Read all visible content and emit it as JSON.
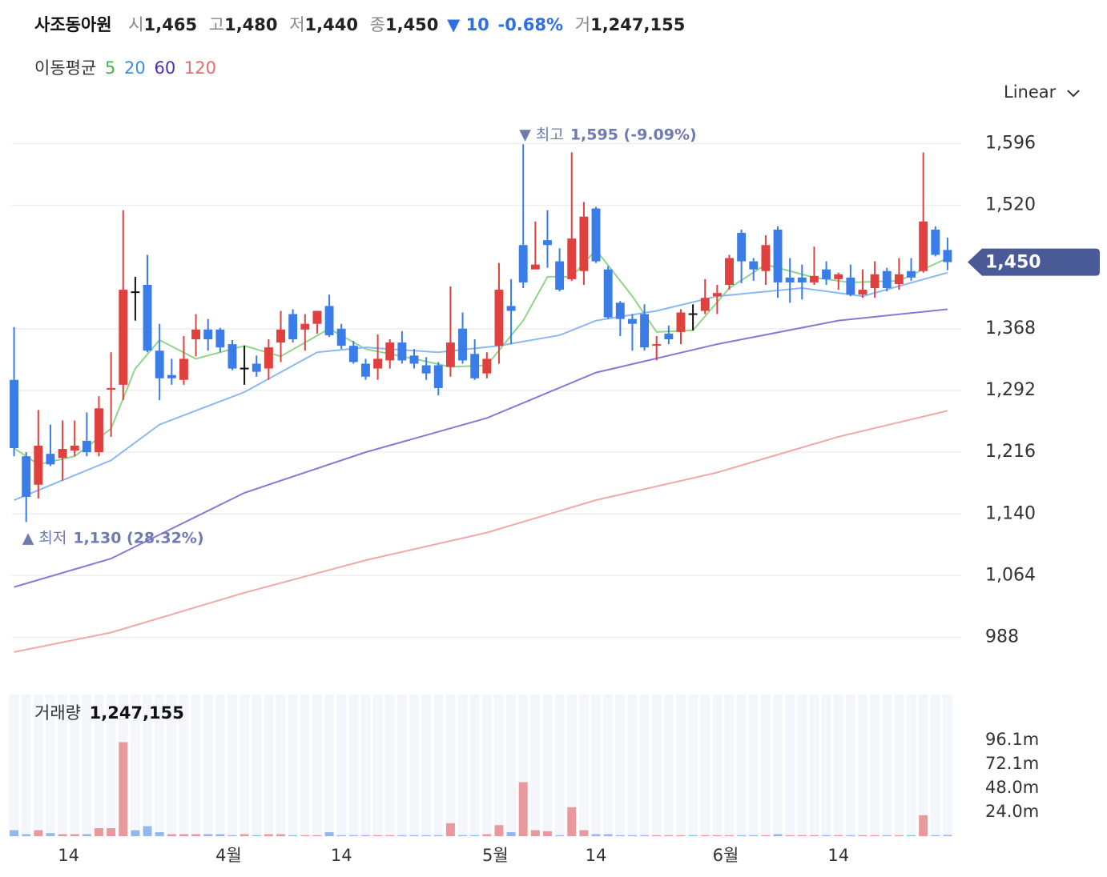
{
  "chart_data": {
    "type": "candlestick",
    "title": "사조동아원",
    "quote": [
      {
        "label": "시",
        "value": "1,465"
      },
      {
        "label": "고",
        "value": "1,480"
      },
      {
        "label": "저",
        "value": "1,440"
      },
      {
        "label": "종",
        "value": "1,450"
      }
    ],
    "change": "▼ 10",
    "change_pct": "-0.68%",
    "volume_label": "거",
    "volume_value": "1,247,155",
    "ma_title": "이동평균",
    "scale_mode": "Linear",
    "open": [
      1305,
      1211,
      1176,
      1214,
      1209,
      1218,
      1230,
      1216,
      1293,
      1299,
      1413,
      1422,
      1341,
      1311,
      1305,
      1355,
      1367,
      1367,
      1349,
      1319,
      1325,
      1319,
      1351,
      1386,
      1367,
      1374,
      1396,
      1368,
      1347,
      1325,
      1319,
      1329,
      1351,
      1335,
      1323,
      1323,
      1321,
      1368,
      1337,
      1313,
      1347,
      1396,
      1471,
      1441,
      1477,
      1451,
      1429,
      1439,
      1516,
      1441,
      1400,
      1380,
      1386,
      1347,
      1362,
      1364,
      1386,
      1390,
      1408,
      1422,
      1486,
      1451,
      1439,
      1490,
      1431,
      1431,
      1425,
      1441,
      1429,
      1431,
      1410,
      1418,
      1439,
      1423,
      1439,
      1439,
      1490,
      1465
    ],
    "high": [
      1370,
      1216,
      1268,
      1250,
      1255,
      1255,
      1265,
      1285,
      1339,
      1514,
      1432,
      1459,
      1374,
      1331,
      1359,
      1386,
      1380,
      1369,
      1354,
      1347,
      1335,
      1355,
      1390,
      1392,
      1386,
      1390,
      1410,
      1374,
      1353,
      1331,
      1361,
      1355,
      1365,
      1343,
      1333,
      1327,
      1420,
      1388,
      1355,
      1339,
      1449,
      1429,
      1595,
      1500,
      1514,
      1467,
      1585,
      1524,
      1518,
      1445,
      1402,
      1386,
      1398,
      1359,
      1372,
      1392,
      1398,
      1429,
      1422,
      1459,
      1490,
      1455,
      1483,
      1494,
      1455,
      1447,
      1469,
      1451,
      1437,
      1447,
      1441,
      1451,
      1443,
      1455,
      1455,
      1585,
      1494,
      1480
    ],
    "low": [
      1211,
      1130,
      1159,
      1199,
      1181,
      1211,
      1211,
      1211,
      1235,
      1280,
      1378,
      1339,
      1280,
      1299,
      1299,
      1334,
      1341,
      1339,
      1317,
      1299,
      1309,
      1305,
      1327,
      1351,
      1341,
      1362,
      1358,
      1343,
      1325,
      1305,
      1305,
      1319,
      1325,
      1319,
      1305,
      1286,
      1309,
      1325,
      1305,
      1307,
      1325,
      1349,
      1418,
      1444,
      1443,
      1414,
      1427,
      1422,
      1449,
      1380,
      1359,
      1341,
      1341,
      1329,
      1349,
      1349,
      1366,
      1386,
      1386,
      1416,
      1424,
      1427,
      1422,
      1406,
      1400,
      1404,
      1422,
      1422,
      1416,
      1408,
      1406,
      1406,
      1414,
      1416,
      1427,
      1437,
      1457,
      1440
    ],
    "close": [
      1221,
      1161,
      1224,
      1201,
      1220,
      1224,
      1216,
      1270,
      1295,
      1416,
      1413,
      1341,
      1307,
      1307,
      1331,
      1367,
      1355,
      1345,
      1319,
      1319,
      1315,
      1345,
      1367,
      1355,
      1374,
      1390,
      1360,
      1347,
      1327,
      1309,
      1331,
      1351,
      1329,
      1325,
      1313,
      1295,
      1351,
      1329,
      1307,
      1331,
      1416,
      1390,
      1425,
      1447,
      1471,
      1416,
      1479,
      1506,
      1451,
      1382,
      1380,
      1374,
      1345,
      1349,
      1355,
      1388,
      1386,
      1406,
      1412,
      1455,
      1451,
      1441,
      1471,
      1425,
      1425,
      1425,
      1433,
      1429,
      1435,
      1410,
      1416,
      1435,
      1418,
      1435,
      1431,
      1500,
      1459,
      1450
    ],
    "volume": [
      6,
      2,
      6,
      3,
      2,
      2,
      2,
      8,
      8,
      94,
      6,
      10,
      4,
      2,
      2,
      2,
      2,
      2,
      1,
      2,
      1,
      2,
      2,
      1,
      1,
      1,
      4,
      1,
      1,
      1,
      1,
      1,
      1,
      1,
      1,
      1,
      13,
      1,
      1,
      2,
      11,
      4,
      54,
      6,
      5,
      1,
      29,
      6,
      2,
      2,
      1,
      1,
      1,
      1,
      1,
      1,
      1,
      1,
      1,
      1,
      1,
      1,
      1,
      2,
      1,
      1,
      1,
      1,
      1,
      1,
      1,
      1,
      1,
      1,
      1,
      21,
      1,
      1.25
    ],
    "up_color": "#e0403e",
    "down_color": "#3a7de8",
    "flat_color": "#111111",
    "xlim": [
      -0.5,
      77.6
    ],
    "ylim": [
      960,
      1620
    ],
    "yticks": [
      {
        "value": 1596,
        "label": "1,596"
      },
      {
        "value": 1520,
        "label": "1,520"
      },
      {
        "value": 1368,
        "label": "1,368"
      },
      {
        "value": 1292,
        "label": "1,292"
      },
      {
        "value": 1216,
        "label": "1,216"
      },
      {
        "value": 1140,
        "label": "1,140"
      },
      {
        "value": 1064,
        "label": "1,064"
      },
      988
    ],
    "xticks": [
      {
        "value": 4.5,
        "label": "14"
      },
      {
        "value": 17.7,
        "label": "4월"
      },
      {
        "value": 27,
        "label": "14"
      },
      {
        "value": 39.7,
        "label": "5월"
      },
      {
        "value": 48,
        "label": "14"
      },
      {
        "value": 58.7,
        "label": "6월"
      },
      {
        "value": 68,
        "label": "14"
      }
    ],
    "grid": true,
    "moving_averages": [
      {
        "name": "5",
        "color": "#8fd68a",
        "label_color": "#4caf50",
        "x": [
          0,
          2,
          5,
          8,
          10,
          12,
          15,
          19,
          22,
          26,
          29,
          33,
          36,
          39,
          42,
          44,
          46,
          48,
          51,
          53,
          56,
          59,
          62,
          66,
          69,
          73,
          77
        ],
        "values": [
          1221,
          1201,
          1211,
          1245,
          1319,
          1354,
          1331,
          1347,
          1334,
          1368,
          1343,
          1331,
          1321,
          1323,
          1378,
          1432,
          1432,
          1465,
          1408,
          1364,
          1366,
          1418,
          1447,
          1431,
          1425,
          1427,
          1455
        ]
      },
      {
        "name": "20",
        "color": "#8ab8f0",
        "label_color": "#3a8ee8",
        "x": [
          0,
          8,
          12,
          19,
          25,
          29,
          35,
          40,
          45,
          48,
          53,
          58,
          65,
          70,
          77
        ],
        "values": [
          1157,
          1206,
          1250,
          1290,
          1339,
          1345,
          1339,
          1347,
          1360,
          1378,
          1390,
          1408,
          1418,
          1408,
          1437
        ]
      },
      {
        "name": "60",
        "color": "#8a78d8",
        "label_color": "#4a2fb8",
        "x": [
          0,
          8,
          19,
          29,
          39,
          48,
          58,
          68,
          77
        ],
        "values": [
          1050,
          1085,
          1166,
          1216,
          1258,
          1314,
          1349,
          1378,
          1392
        ]
      },
      {
        "name": "120",
        "color": "#f0a8a8",
        "label_color": "#e86b6b",
        "x": [
          0,
          8,
          19,
          29,
          39,
          48,
          58,
          68,
          77
        ],
        "values": [
          970,
          994,
          1043,
          1083,
          1117,
          1157,
          1191,
          1235,
          1267
        ]
      }
    ],
    "annotations": [
      {
        "label": "▼ 최고",
        "text": "1,595 (-9.09%)",
        "index": 42,
        "value": 1595,
        "at": "high"
      },
      {
        "label": "▲ 최저",
        "text": "1,130 (28.32%)",
        "index": 1,
        "value": 1130,
        "at": "low"
      }
    ],
    "last_price_label": "1,450",
    "volume_panel": {
      "title": "거래량",
      "value": "1,247,155",
      "ylim": [
        0,
        100
      ],
      "yticks": [
        {
          "value": 96.1,
          "label": "96.1m"
        },
        {
          "value": 72.1,
          "label": "72.1m"
        },
        {
          "value": 48.0,
          "label": "48.0m"
        },
        {
          "value": 24.0,
          "label": "24.0m"
        }
      ]
    }
  }
}
